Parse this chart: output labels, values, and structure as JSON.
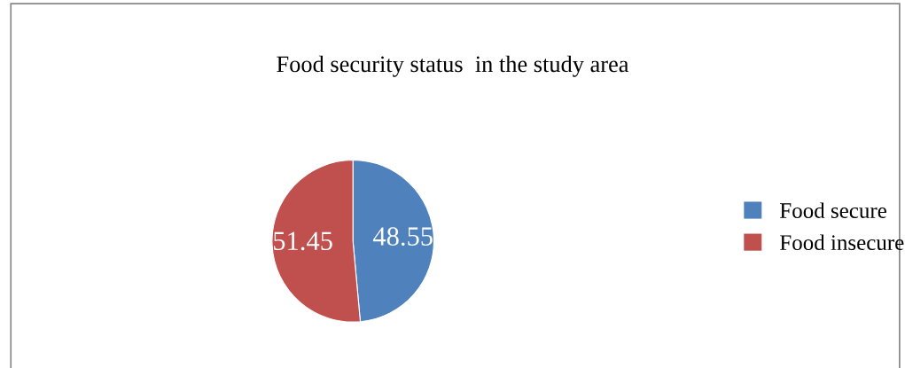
{
  "chart_data": {
    "type": "pie",
    "title": "Food security status  in the study area",
    "categories": [
      "Food secure",
      "Food insecure"
    ],
    "values": [
      48.55,
      51.45
    ],
    "colors": [
      "#4f81bd",
      "#c0504d"
    ],
    "data_labels": true,
    "legend": "right"
  }
}
